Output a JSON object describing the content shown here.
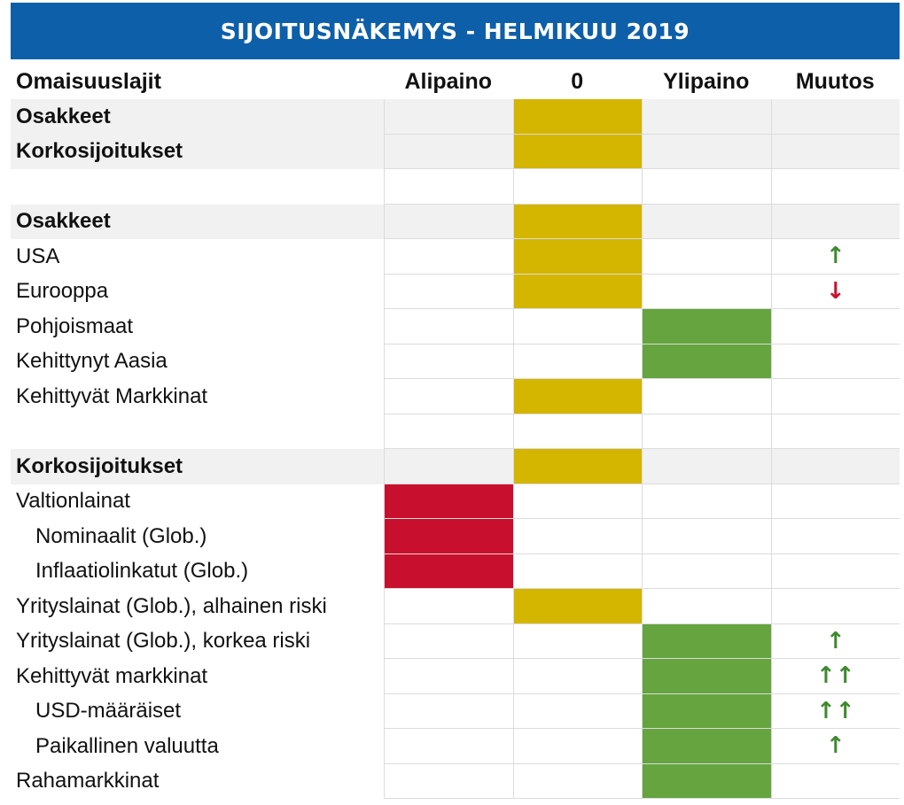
{
  "title": "SIJOITUSNÄKEMYS - HELMIKUU 2019",
  "headers": {
    "asset": "Omaisuuslajit",
    "under": "Alipaino",
    "neutral": "0",
    "over": "Ylipaino",
    "change": "Muutos"
  },
  "colors": {
    "neutral": "#d4b500",
    "overweight": "#65a43f",
    "underweight": "#c8102e",
    "banner": "#0e5fa9",
    "arrow_up": "#3e8a2e",
    "arrow_down": "#c8102e"
  },
  "rows": [
    {
      "label": "Osakkeet",
      "style": "section",
      "position": "neutral",
      "change": ""
    },
    {
      "label": "Korkosijoitukset",
      "style": "section",
      "position": "neutral",
      "change": ""
    },
    {
      "label": "",
      "style": "blank",
      "position": "",
      "change": ""
    },
    {
      "label": "Osakkeet",
      "style": "section",
      "position": "neutral",
      "change": ""
    },
    {
      "label": "USA",
      "style": "normal",
      "position": "neutral",
      "change": "↑"
    },
    {
      "label": "Eurooppa",
      "style": "normal",
      "position": "neutral",
      "change": "↓"
    },
    {
      "label": "Pohjoismaat",
      "style": "normal",
      "position": "over",
      "change": ""
    },
    {
      "label": "Kehittynyt Aasia",
      "style": "normal",
      "position": "over",
      "change": ""
    },
    {
      "label": "Kehittyvät Markkinat",
      "style": "normal",
      "position": "neutral",
      "change": ""
    },
    {
      "label": "",
      "style": "blank",
      "position": "",
      "change": ""
    },
    {
      "label": "Korkosijoitukset",
      "style": "section",
      "position": "neutral",
      "change": ""
    },
    {
      "label": "Valtionlainat",
      "style": "normal",
      "position": "under",
      "change": ""
    },
    {
      "label": "Nominaalit (Glob.)",
      "style": "indent",
      "position": "under",
      "change": ""
    },
    {
      "label": "Inflaatiolinkatut (Glob.)",
      "style": "indent",
      "position": "under",
      "change": ""
    },
    {
      "label": "Yrityslainat (Glob.), alhainen riski",
      "style": "normal",
      "position": "neutral",
      "change": ""
    },
    {
      "label": "Yrityslainat (Glob.), korkea riski",
      "style": "normal",
      "position": "over",
      "change": "↑"
    },
    {
      "label": "Kehittyvät markkinat",
      "style": "normal",
      "position": "over",
      "change": "↑↑"
    },
    {
      "label": "USD-määräiset",
      "style": "indent",
      "position": "over",
      "change": "↑↑"
    },
    {
      "label": "Paikallinen valuutta",
      "style": "indent",
      "position": "over",
      "change": "↑"
    },
    {
      "label": "Rahamarkkinat",
      "style": "normal",
      "position": "over",
      "change": ""
    }
  ]
}
